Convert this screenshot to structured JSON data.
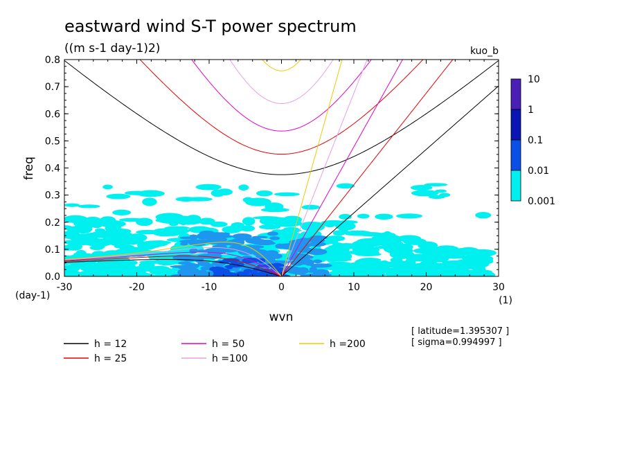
{
  "chart_data": {
    "type": "heatmap",
    "title": "eastward wind S-T power spectrum",
    "subtitle": "((m s-1 day-1)2)",
    "tag": "kuo_b",
    "xlabel": "wvn",
    "ylabel": "freq",
    "xunit": "(1)",
    "yunit": "(day-1)",
    "xlim": [
      -30,
      30
    ],
    "ylim": [
      0,
      0.8
    ],
    "xticks": [
      -30,
      -20,
      -10,
      0,
      10,
      20,
      30
    ],
    "xtick_labels": [
      "-30",
      "-20",
      "-10",
      "0",
      "10",
      "20",
      "30"
    ],
    "yticks": [
      0,
      0.1,
      0.2,
      0.3,
      0.4,
      0.5,
      0.6,
      0.7,
      0.8
    ],
    "ytick_labels": [
      "0.0",
      "0.1",
      "0.2",
      "0.3",
      "0.4",
      "0.5",
      "0.6",
      "0.7",
      "0.8"
    ],
    "colorbar": {
      "labels": [
        "10",
        "1",
        "0.1",
        "0.01",
        "0.001"
      ],
      "colors": [
        "#4b1fb5",
        "#0a14b4",
        "#0a50e6",
        "#1e96f0",
        "#00f0f0"
      ]
    },
    "annotations": [
      "[ latitude=1.395307 ]",
      "[ sigma=0.994997 ]"
    ],
    "dispersion_curves": [
      {
        "name": "h = 12",
        "h": 12,
        "color": "#000000"
      },
      {
        "name": "h = 25",
        "h": 25,
        "color": "#e60000"
      },
      {
        "name": "h = 50",
        "h": 50,
        "color": "#e600c8"
      },
      {
        "name": "h =100",
        "h": 100,
        "color": "#e6a0e6"
      },
      {
        "name": "h =200",
        "h": 200,
        "color": "#f0c800"
      }
    ],
    "power_regions": [
      {
        "level": "0.001",
        "description": "scattered cyan patches, strongest in freq 0-0.25 for wvn -30..15"
      },
      {
        "level": "0.01",
        "description": "blue patches in freq 0-0.15, wvn -12..5"
      },
      {
        "level": "0.1",
        "description": "dark blue near freq 0-0.05, wvn -8..-2"
      }
    ]
  }
}
